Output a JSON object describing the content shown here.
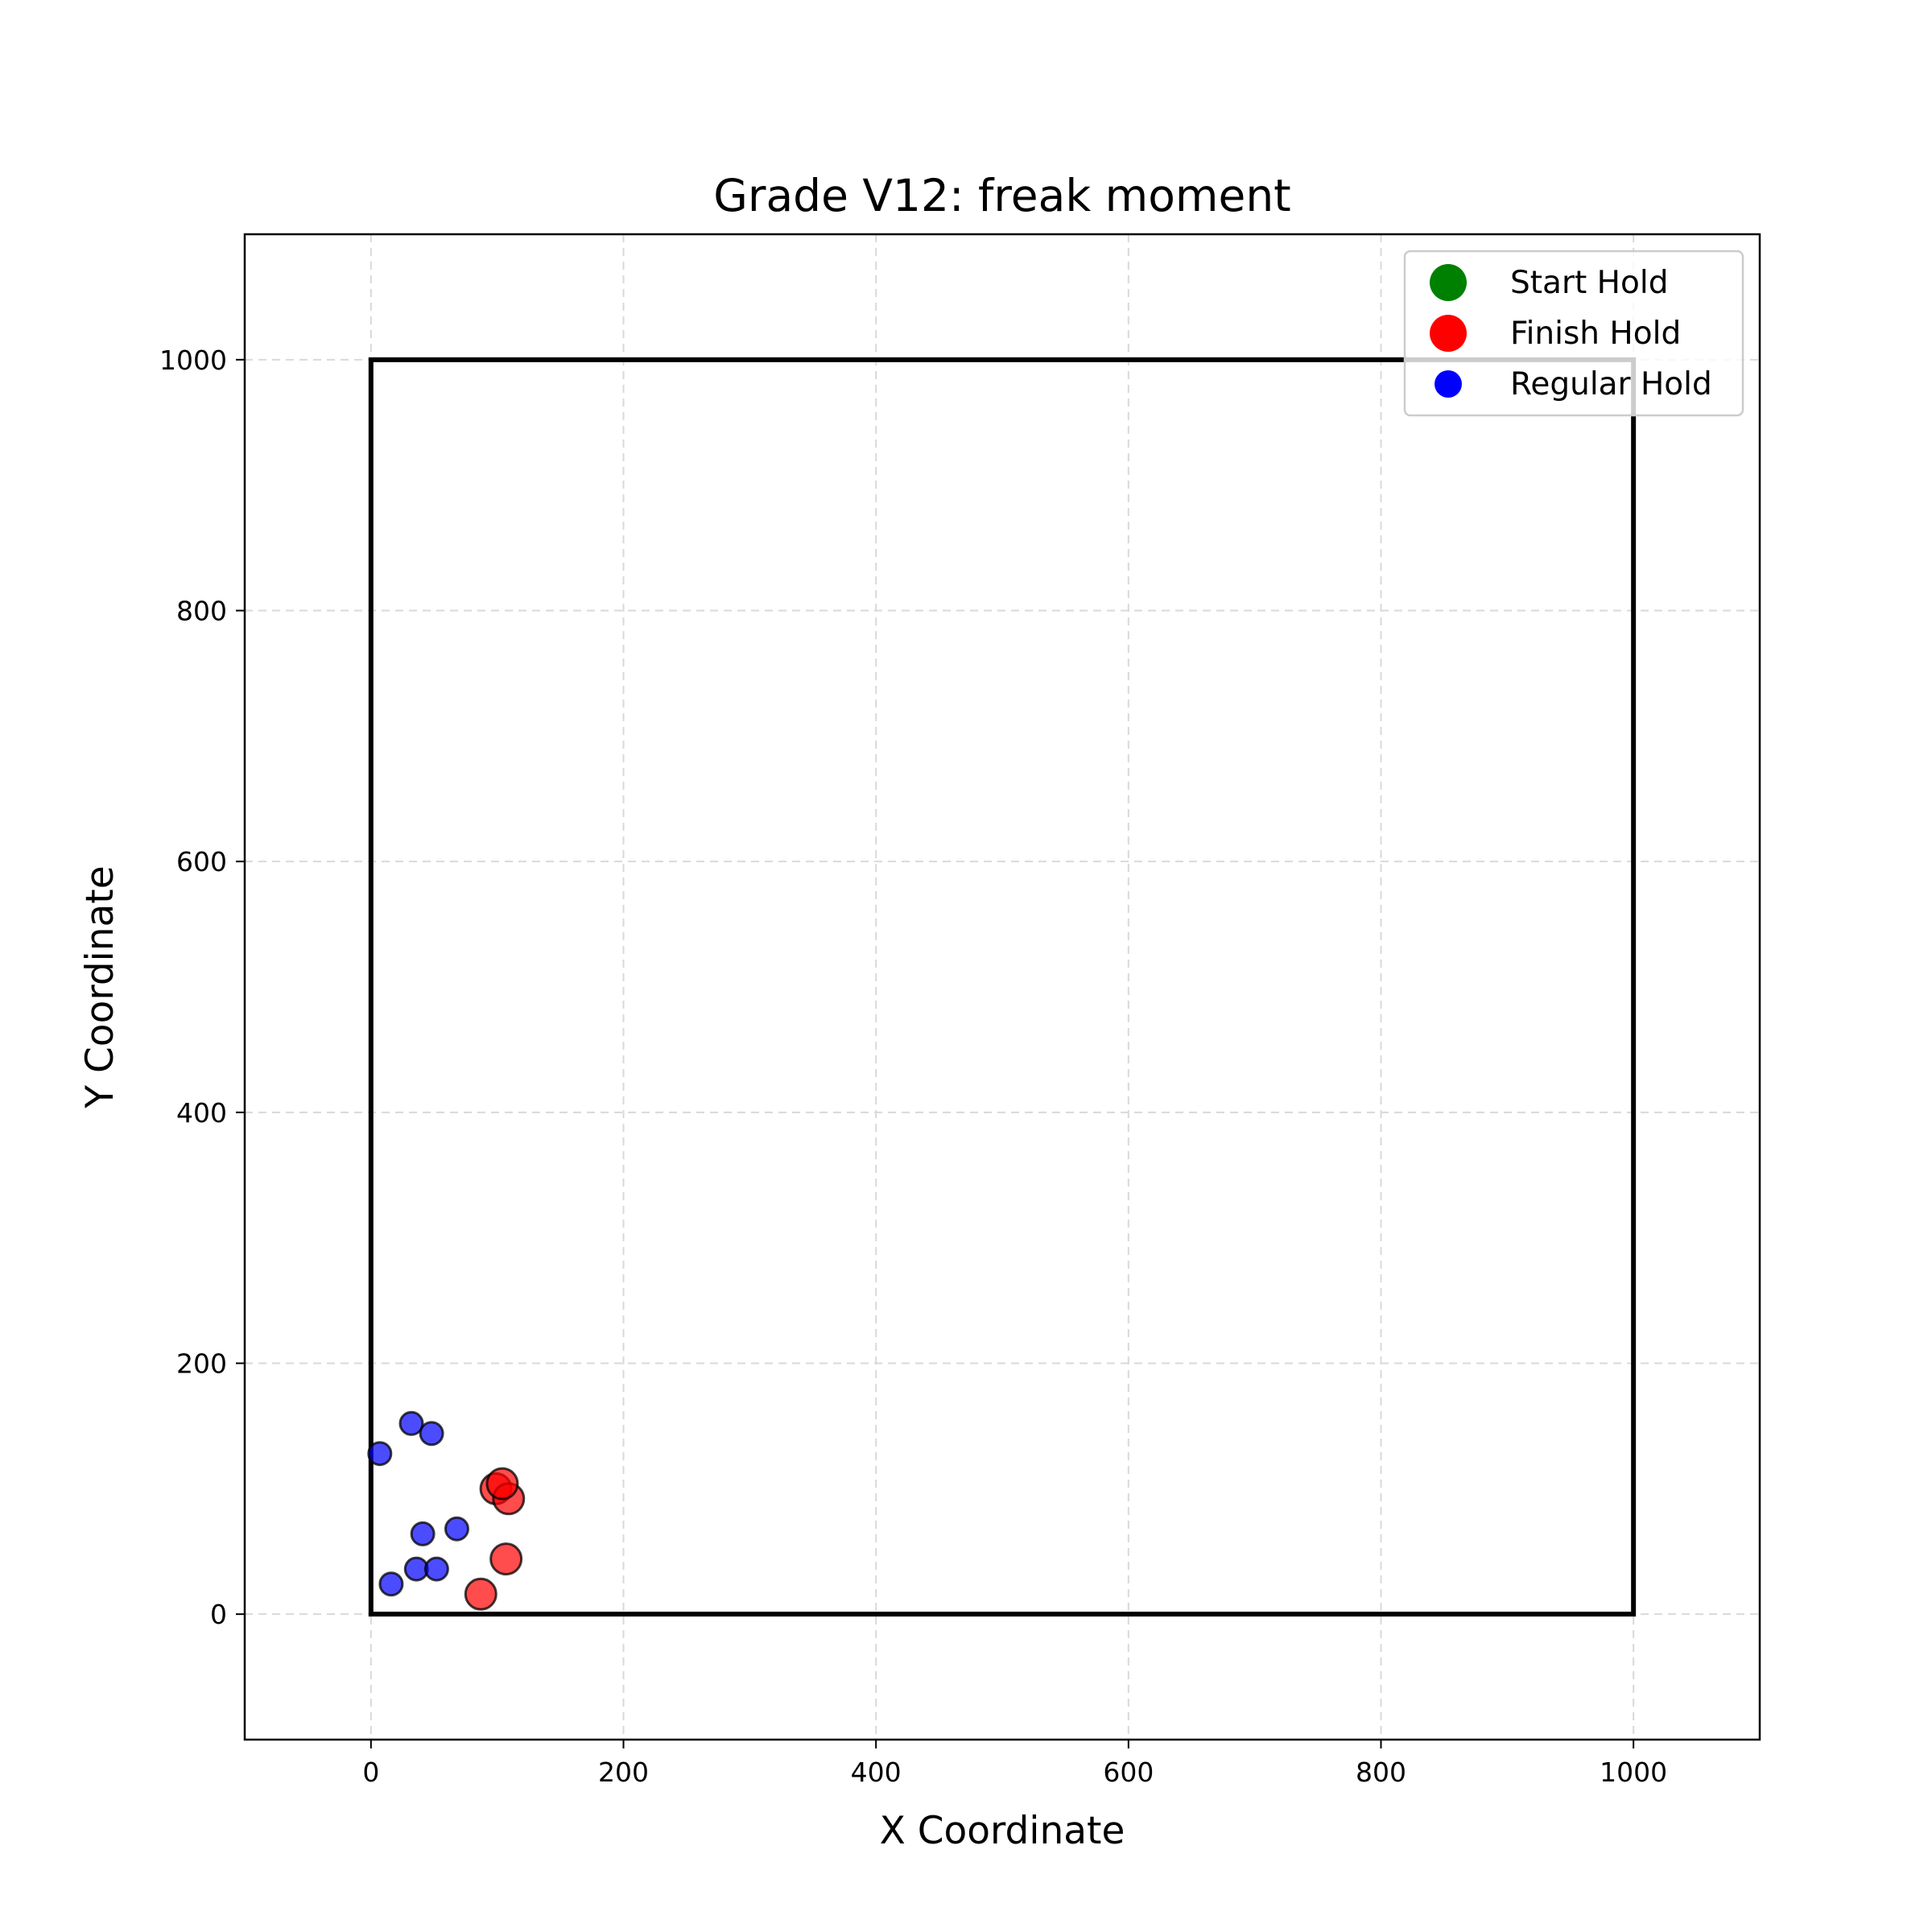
{
  "chart_data": {
    "type": "scatter",
    "title": "Grade V12: freak moment",
    "xlabel": "X Coordinate",
    "ylabel": "Y Coordinate",
    "xlim": [
      -100,
      1100
    ],
    "ylim": [
      -100,
      1100
    ],
    "xticks": [
      0,
      200,
      400,
      600,
      800,
      1000
    ],
    "yticks": [
      0,
      200,
      400,
      600,
      800,
      1000
    ],
    "grid": true,
    "legend_position": "top-right",
    "wall_boundary": [
      [
        0,
        0
      ],
      [
        1000,
        0
      ],
      [
        1000,
        1000
      ],
      [
        0,
        1000
      ]
    ],
    "series": [
      {
        "name": "Start Hold",
        "color": "#008000",
        "points": []
      },
      {
        "name": "Finish Hold",
        "color": "#ff0000",
        "points": [
          [
            87,
            16
          ],
          [
            107,
            44
          ],
          [
            99,
            100
          ],
          [
            109,
            92
          ],
          [
            104,
            104
          ]
        ]
      },
      {
        "name": "Regular Hold",
        "color": "#0000ff",
        "points": [
          [
            7,
            128
          ],
          [
            32,
            152
          ],
          [
            48,
            144
          ],
          [
            41,
            64
          ],
          [
            68,
            68
          ],
          [
            36,
            36
          ],
          [
            52,
            36
          ],
          [
            16,
            24
          ]
        ]
      }
    ]
  }
}
